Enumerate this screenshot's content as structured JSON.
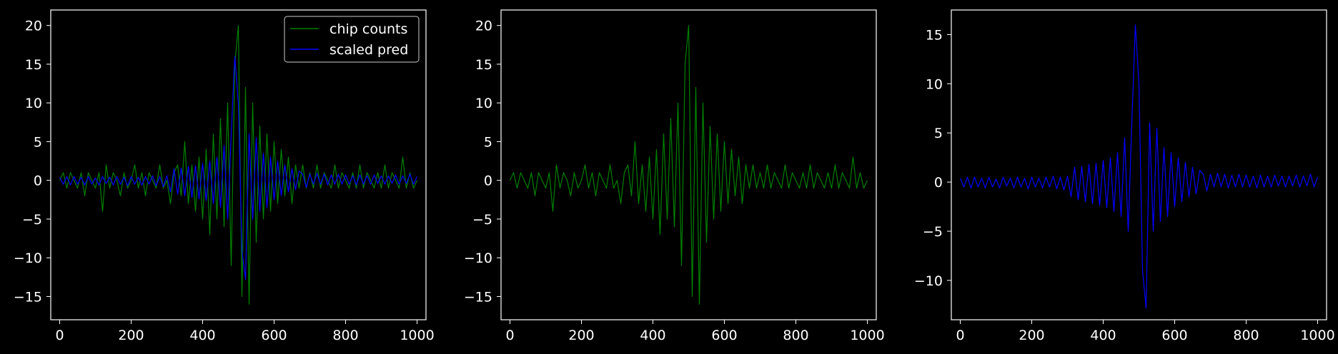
{
  "figure": {
    "background": "#000000",
    "axis_color": "#ffffff"
  },
  "chart_data": [
    {
      "type": "line",
      "title": "",
      "xlabel": "",
      "ylabel": "",
      "xlim": [
        -25,
        1025
      ],
      "ylim": [
        -18,
        22
      ],
      "xticks": [
        0,
        200,
        400,
        600,
        800,
        1000
      ],
      "yticks": [
        -15,
        -10,
        -5,
        0,
        5,
        10,
        15,
        20
      ],
      "legend": {
        "placement": "top-right",
        "entries": [
          "chip counts",
          "scaled pred"
        ]
      },
      "series": [
        {
          "name": "chip counts",
          "color": "#008000",
          "x": [
            0,
            10,
            20,
            30,
            40,
            50,
            60,
            70,
            80,
            90,
            100,
            110,
            120,
            130,
            140,
            150,
            160,
            170,
            180,
            190,
            200,
            210,
            220,
            230,
            240,
            250,
            260,
            270,
            280,
            290,
            300,
            310,
            320,
            330,
            340,
            350,
            360,
            370,
            380,
            390,
            400,
            410,
            420,
            430,
            440,
            450,
            460,
            470,
            480,
            490,
            500,
            510,
            520,
            530,
            540,
            550,
            560,
            570,
            580,
            590,
            600,
            610,
            620,
            630,
            640,
            650,
            660,
            670,
            680,
            690,
            700,
            710,
            720,
            730,
            740,
            750,
            760,
            770,
            780,
            790,
            800,
            810,
            820,
            830,
            840,
            850,
            860,
            870,
            880,
            890,
            900,
            910,
            920,
            930,
            940,
            950,
            960,
            970,
            980,
            990,
            1000
          ],
          "values": [
            0,
            1,
            -1,
            1,
            0,
            -1,
            1,
            -2,
            1,
            0,
            -1,
            1,
            -4,
            2,
            -1,
            1,
            0,
            -2,
            1,
            -1,
            0,
            2,
            -1,
            1,
            -2,
            1,
            0,
            -1,
            2,
            -1,
            0,
            -3,
            1,
            2,
            -2,
            5,
            -3,
            2,
            -4,
            3,
            -5,
            4,
            -7,
            6,
            -5,
            8,
            -6,
            10,
            -11,
            15,
            20,
            -15,
            12,
            -16,
            10,
            -8,
            7,
            -5,
            6,
            -4,
            5,
            -3,
            4,
            -2,
            3,
            -3,
            2,
            -1,
            2,
            -1,
            1,
            -1,
            2,
            -1,
            1,
            0,
            -1,
            2,
            -1,
            1,
            0,
            -1,
            1,
            -1,
            2,
            -1,
            1,
            0,
            -1,
            1,
            -1,
            2,
            -1,
            1,
            0,
            -1,
            3,
            -1,
            1,
            -1,
            0
          ]
        },
        {
          "name": "scaled pred",
          "color": "#0000ff",
          "x": [
            0,
            10,
            20,
            30,
            40,
            50,
            60,
            70,
            80,
            90,
            100,
            110,
            120,
            130,
            140,
            150,
            160,
            170,
            180,
            190,
            200,
            210,
            220,
            230,
            240,
            250,
            260,
            270,
            280,
            290,
            300,
            310,
            320,
            330,
            340,
            350,
            360,
            370,
            380,
            390,
            400,
            410,
            420,
            430,
            440,
            450,
            460,
            470,
            480,
            490,
            500,
            510,
            520,
            530,
            540,
            550,
            560,
            570,
            580,
            590,
            600,
            610,
            620,
            630,
            640,
            650,
            660,
            670,
            680,
            690,
            700,
            710,
            720,
            730,
            740,
            750,
            760,
            770,
            780,
            790,
            800,
            810,
            820,
            830,
            840,
            850,
            860,
            870,
            880,
            890,
            900,
            910,
            920,
            930,
            940,
            950,
            960,
            970,
            980,
            990,
            1000
          ],
          "values": [
            0.4,
            -0.5,
            0.5,
            -0.6,
            0.5,
            -0.5,
            0.4,
            -0.6,
            0.5,
            -0.5,
            0.3,
            -0.6,
            0.5,
            -0.4,
            0.4,
            -0.6,
            0.5,
            -0.5,
            0.4,
            -0.7,
            0.5,
            -0.5,
            0.4,
            -0.6,
            0.5,
            -0.5,
            0.6,
            -0.7,
            0.5,
            -0.8,
            0.6,
            -1.5,
            1.5,
            -1.8,
            1.6,
            -2.0,
            1.8,
            -2.2,
            1.9,
            -2.4,
            2.2,
            -2.6,
            2.5,
            -3.0,
            3.0,
            -3.5,
            4.5,
            -5.0,
            6.0,
            16.0,
            10.0,
            -9.0,
            -12.8,
            6.0,
            -5.0,
            5.5,
            -4.0,
            3.5,
            -3.5,
            3.0,
            -2.5,
            2.5,
            -2.0,
            2.0,
            -1.5,
            1.5,
            -1.2,
            1.2,
            0.8,
            -0.9,
            0.8,
            -0.5,
            0.9,
            -0.5,
            0.8,
            -0.6,
            0.7,
            -0.5,
            0.8,
            -0.5,
            0.7,
            -0.5,
            0.6,
            -0.6,
            0.7,
            -0.5,
            0.6,
            -0.5,
            0.7,
            -0.4,
            0.6,
            -0.5,
            0.6,
            -0.4,
            0.7,
            -0.5,
            0.6,
            -0.4,
            0.8,
            -0.5,
            0.5
          ]
        }
      ]
    },
    {
      "type": "line",
      "title": "",
      "xlabel": "",
      "ylabel": "",
      "xlim": [
        -25,
        1025
      ],
      "ylim": [
        -18,
        22
      ],
      "xticks": [
        0,
        200,
        400,
        600,
        800,
        1000
      ],
      "yticks": [
        -15,
        -10,
        -5,
        0,
        5,
        10,
        15,
        20
      ],
      "series": [
        {
          "color": "#008000",
          "x": [
            0,
            10,
            20,
            30,
            40,
            50,
            60,
            70,
            80,
            90,
            100,
            110,
            120,
            130,
            140,
            150,
            160,
            170,
            180,
            190,
            200,
            210,
            220,
            230,
            240,
            250,
            260,
            270,
            280,
            290,
            300,
            310,
            320,
            330,
            340,
            350,
            360,
            370,
            380,
            390,
            400,
            410,
            420,
            430,
            440,
            450,
            460,
            470,
            480,
            490,
            500,
            510,
            520,
            530,
            540,
            550,
            560,
            570,
            580,
            590,
            600,
            610,
            620,
            630,
            640,
            650,
            660,
            670,
            680,
            690,
            700,
            710,
            720,
            730,
            740,
            750,
            760,
            770,
            780,
            790,
            800,
            810,
            820,
            830,
            840,
            850,
            860,
            870,
            880,
            890,
            900,
            910,
            920,
            930,
            940,
            950,
            960,
            970,
            980,
            990,
            1000
          ],
          "values": [
            0,
            1,
            -1,
            1,
            0,
            -1,
            1,
            -2,
            1,
            0,
            -1,
            1,
            -4,
            2,
            -1,
            1,
            0,
            -2,
            1,
            -1,
            0,
            2,
            -1,
            1,
            -2,
            1,
            0,
            -1,
            2,
            -1,
            0,
            -3,
            1,
            2,
            -2,
            5,
            -3,
            2,
            -4,
            3,
            -5,
            4,
            -7,
            6,
            -5,
            8,
            -6,
            10,
            -11,
            15,
            20,
            -15,
            12,
            -16,
            10,
            -8,
            7,
            -5,
            6,
            -4,
            5,
            -3,
            4,
            -2,
            3,
            -3,
            2,
            -1,
            2,
            -1,
            1,
            -1,
            2,
            -1,
            1,
            0,
            -1,
            2,
            -1,
            1,
            0,
            -1,
            1,
            -1,
            2,
            -1,
            1,
            0,
            -1,
            1,
            -1,
            2,
            -1,
            1,
            0,
            -1,
            3,
            -1,
            1,
            -1,
            0
          ]
        }
      ]
    },
    {
      "type": "line",
      "title": "",
      "xlabel": "",
      "ylabel": "",
      "xlim": [
        -25,
        1025
      ],
      "ylim": [
        -14,
        17.5
      ],
      "xticks": [
        0,
        200,
        400,
        600,
        800,
        1000
      ],
      "yticks": [
        -10,
        -5,
        0,
        5,
        10,
        15
      ],
      "series": [
        {
          "color": "#0000ff",
          "x": [
            0,
            10,
            20,
            30,
            40,
            50,
            60,
            70,
            80,
            90,
            100,
            110,
            120,
            130,
            140,
            150,
            160,
            170,
            180,
            190,
            200,
            210,
            220,
            230,
            240,
            250,
            260,
            270,
            280,
            290,
            300,
            310,
            320,
            330,
            340,
            350,
            360,
            370,
            380,
            390,
            400,
            410,
            420,
            430,
            440,
            450,
            460,
            470,
            480,
            490,
            500,
            510,
            520,
            530,
            540,
            550,
            560,
            570,
            580,
            590,
            600,
            610,
            620,
            630,
            640,
            650,
            660,
            670,
            680,
            690,
            700,
            710,
            720,
            730,
            740,
            750,
            760,
            770,
            780,
            790,
            800,
            810,
            820,
            830,
            840,
            850,
            860,
            870,
            880,
            890,
            900,
            910,
            920,
            930,
            940,
            950,
            960,
            970,
            980,
            990,
            1000
          ],
          "values": [
            0.4,
            -0.5,
            0.5,
            -0.6,
            0.5,
            -0.5,
            0.4,
            -0.6,
            0.5,
            -0.5,
            0.3,
            -0.6,
            0.5,
            -0.4,
            0.4,
            -0.6,
            0.5,
            -0.5,
            0.4,
            -0.7,
            0.5,
            -0.5,
            0.4,
            -0.6,
            0.5,
            -0.5,
            0.6,
            -0.7,
            0.5,
            -0.8,
            0.6,
            -1.5,
            1.5,
            -1.8,
            1.6,
            -2.0,
            1.8,
            -2.2,
            1.9,
            -2.4,
            2.2,
            -2.6,
            2.5,
            -3.0,
            3.0,
            -3.5,
            4.5,
            -5.0,
            6.0,
            16.0,
            10.0,
            -9.0,
            -12.8,
            6.0,
            -5.0,
            5.5,
            -4.0,
            3.5,
            -3.5,
            3.0,
            -2.5,
            2.5,
            -2.0,
            2.0,
            -1.5,
            1.5,
            -1.2,
            1.2,
            0.8,
            -0.9,
            0.8,
            -0.5,
            0.9,
            -0.5,
            0.8,
            -0.6,
            0.7,
            -0.5,
            0.8,
            -0.5,
            0.7,
            -0.5,
            0.6,
            -0.6,
            0.7,
            -0.5,
            0.6,
            -0.5,
            0.7,
            -0.4,
            0.6,
            -0.5,
            0.6,
            -0.4,
            0.7,
            -0.5,
            0.6,
            -0.4,
            0.8,
            -0.5,
            0.5
          ]
        }
      ]
    }
  ]
}
